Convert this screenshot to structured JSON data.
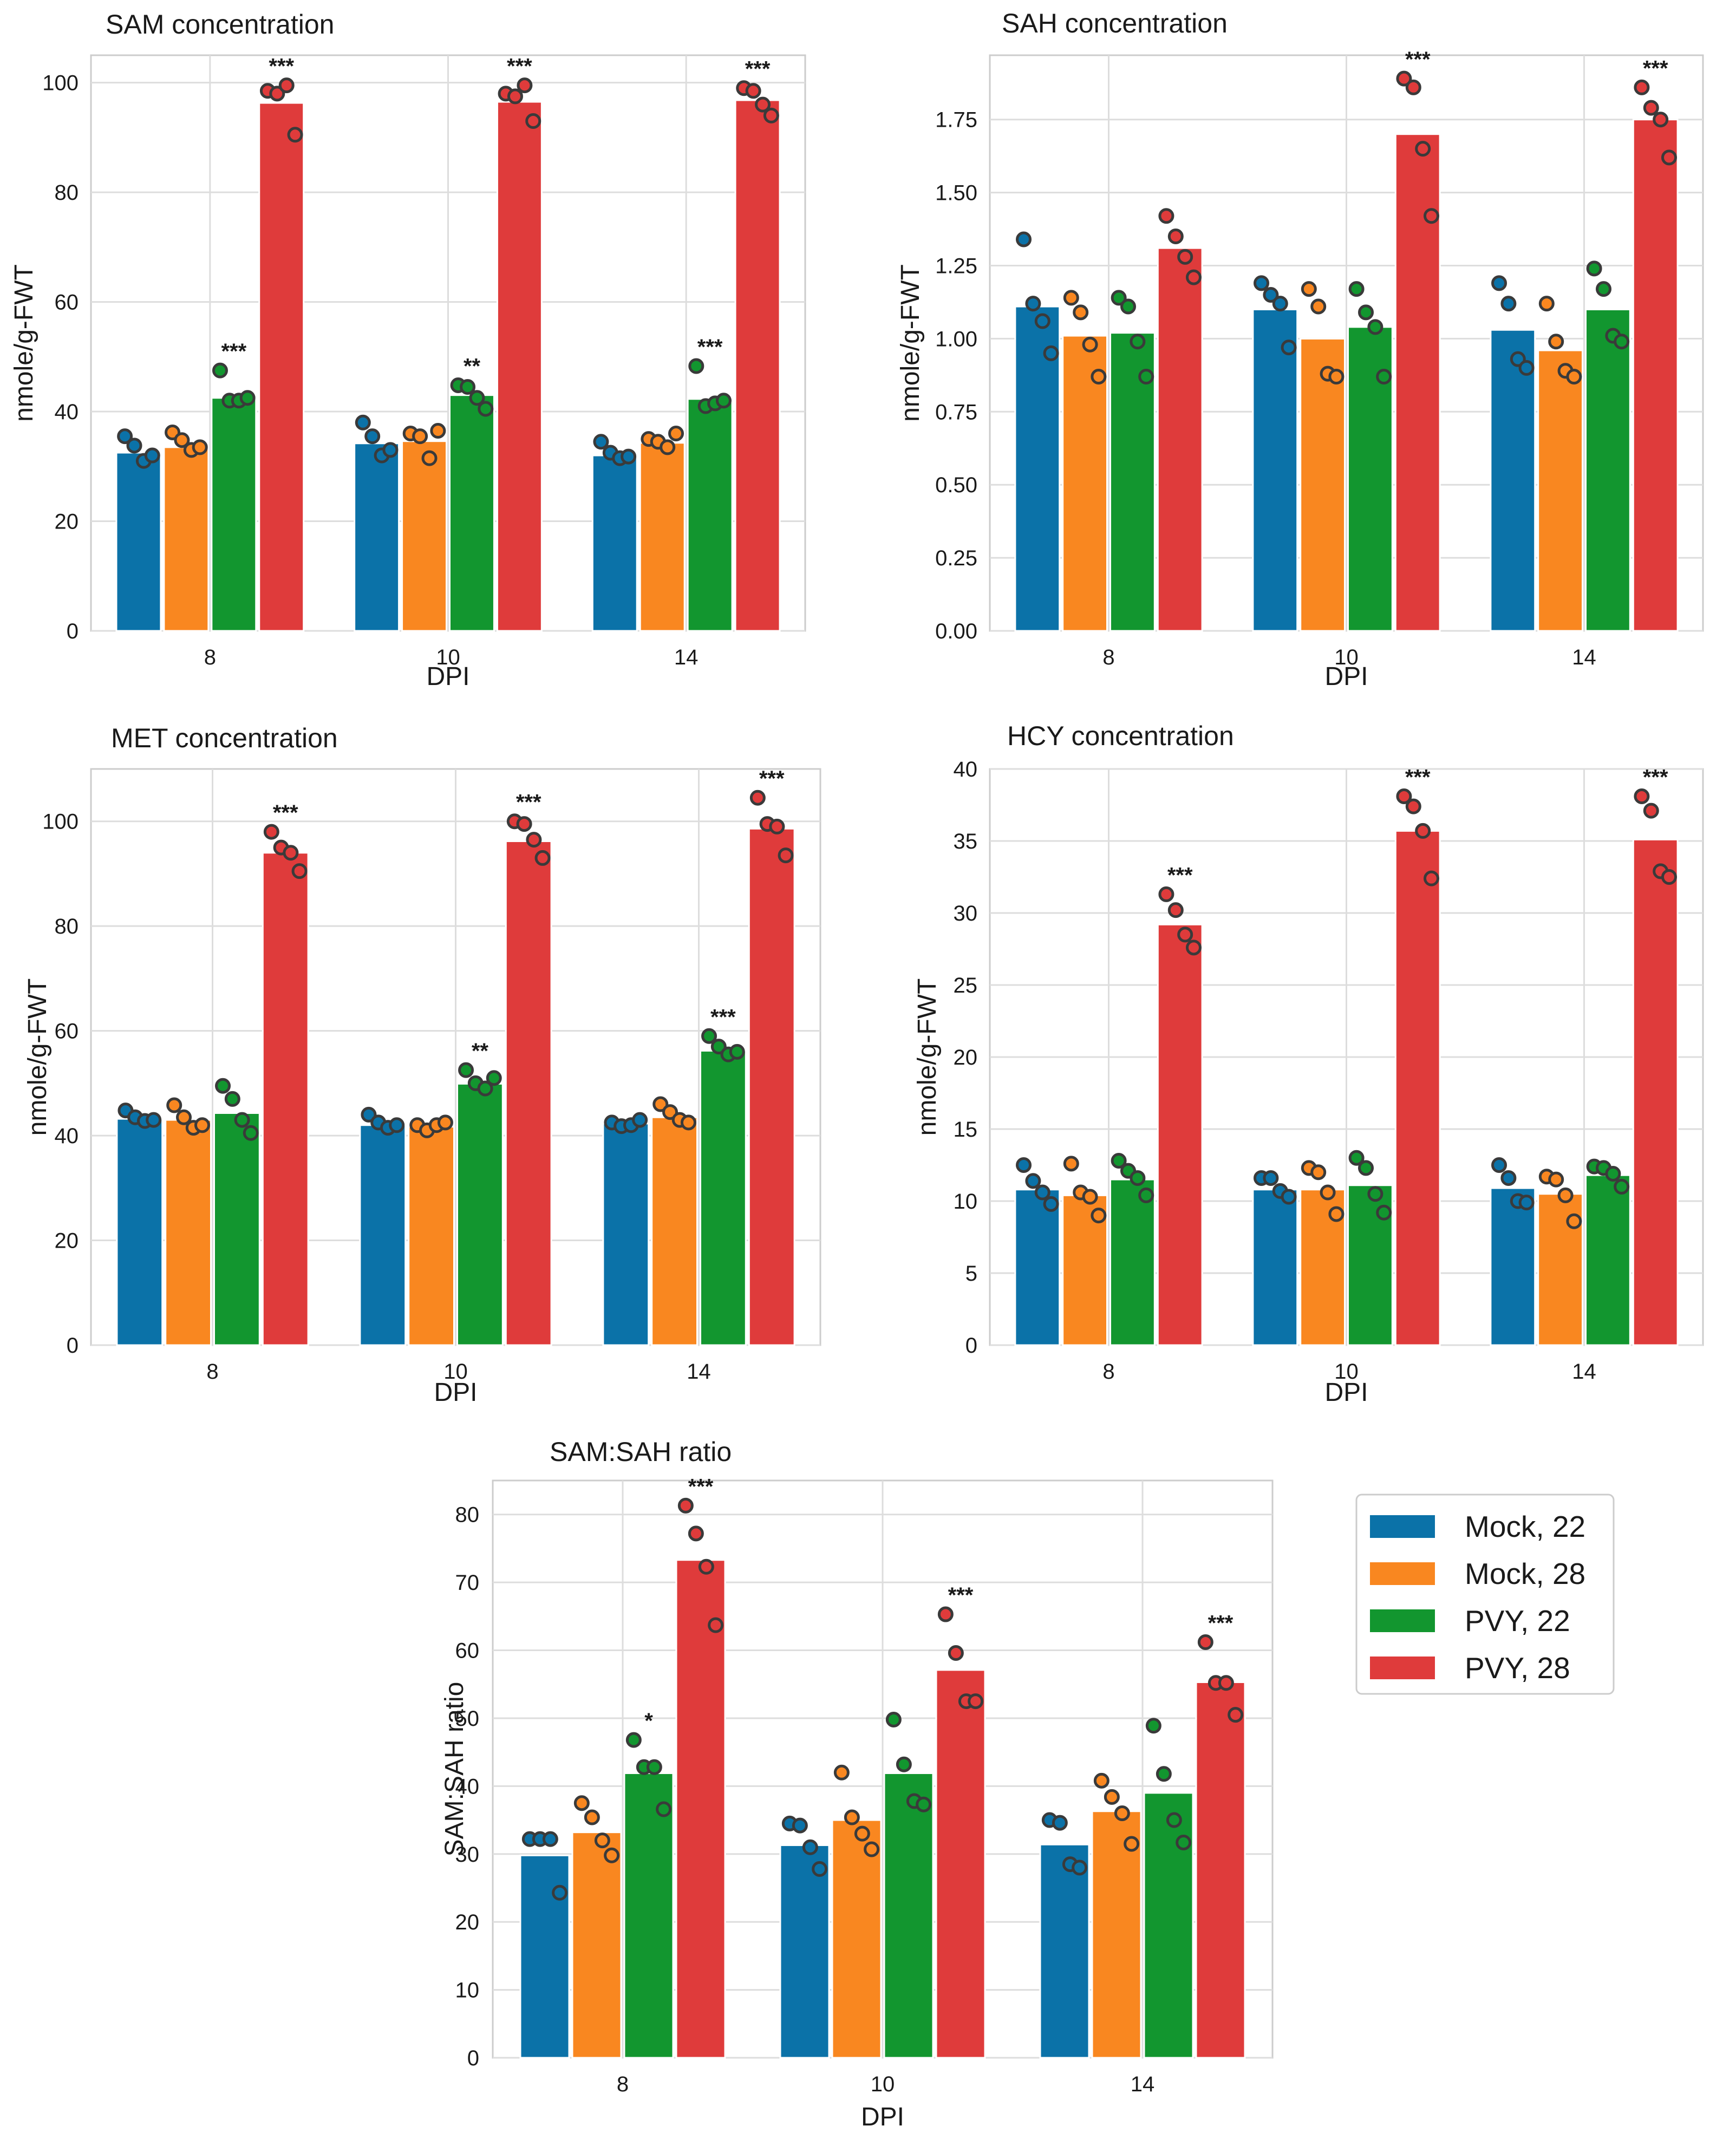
{
  "colors": {
    "Mock, 22": "#0b72a8",
    "Mock, 28": "#f98720",
    "PVY, 22": "#12962f",
    "PVY, 28": "#df3b3b",
    "grid": "#dddddd",
    "frame": "#cccccc",
    "point_edge": "#3a3a3a"
  },
  "legend": {
    "items": [
      "Mock, 22",
      "Mock, 28",
      "PVY, 22",
      "PVY, 28"
    ]
  },
  "chart_data": [
    {
      "type": "bar",
      "title": "SAM concentration",
      "xlabel": "DPI",
      "ylabel": "nmole/g-FWT",
      "categories": [
        "8",
        "10",
        "14"
      ],
      "ylim": [
        0,
        105
      ],
      "yticks": [
        0,
        20,
        40,
        60,
        80,
        100
      ],
      "tick_labels": [
        "0",
        "20",
        "40",
        "60",
        "80",
        "100"
      ],
      "series": [
        {
          "name": "Mock, 22",
          "values": [
            32.5,
            34.2,
            32.0
          ],
          "points": [
            [
              35.5,
              33.8,
              31.0,
              32.0
            ],
            [
              38.0,
              35.5,
              32.0,
              33.0
            ],
            [
              34.5,
              32.5,
              31.5,
              31.8
            ]
          ],
          "sig": [
            "",
            "",
            ""
          ]
        },
        {
          "name": "Mock, 28",
          "values": [
            33.5,
            34.6,
            34.3
          ],
          "points": [
            [
              36.2,
              34.8,
              33.0,
              33.5
            ],
            [
              36.0,
              35.5,
              31.5,
              36.5
            ],
            [
              35.0,
              34.5,
              33.5,
              36.0
            ]
          ],
          "sig": [
            "",
            "",
            ""
          ]
        },
        {
          "name": "PVY, 22",
          "values": [
            42.5,
            43.0,
            42.3
          ],
          "points": [
            [
              47.5,
              42.0,
              42.0,
              42.5
            ],
            [
              44.8,
              44.5,
              42.5,
              40.5
            ],
            [
              48.3,
              41.0,
              41.5,
              42.0
            ]
          ],
          "sig": [
            "***",
            "**",
            "***"
          ]
        },
        {
          "name": "PVY, 28",
          "values": [
            96.3,
            96.5,
            96.8
          ],
          "points": [
            [
              98.5,
              98.0,
              99.5,
              90.5
            ],
            [
              98.0,
              97.5,
              99.5,
              93.0
            ],
            [
              99.0,
              98.5,
              96.0,
              94.0
            ]
          ],
          "sig": [
            "***",
            "***",
            "***"
          ]
        }
      ]
    },
    {
      "type": "bar",
      "title": "SAH concentration",
      "xlabel": "DPI",
      "ylabel": "nmole/g-FWT",
      "categories": [
        "8",
        "10",
        "14"
      ],
      "ylim": [
        0,
        1.97
      ],
      "yticks": [
        0,
        0.25,
        0.5,
        0.75,
        1.0,
        1.25,
        1.5,
        1.75
      ],
      "tick_labels": [
        "0.00",
        "0.25",
        "0.50",
        "0.75",
        "1.00",
        "1.25",
        "1.50",
        "1.75"
      ],
      "series": [
        {
          "name": "Mock, 22",
          "values": [
            1.11,
            1.1,
            1.03
          ],
          "points": [
            [
              1.34,
              1.12,
              1.06,
              0.95
            ],
            [
              1.19,
              1.15,
              1.12,
              0.97
            ],
            [
              1.19,
              1.12,
              0.93,
              0.9
            ]
          ],
          "sig": [
            "",
            "",
            ""
          ]
        },
        {
          "name": "Mock, 28",
          "values": [
            1.01,
            1.0,
            0.96
          ],
          "points": [
            [
              1.14,
              1.09,
              0.98,
              0.87
            ],
            [
              1.17,
              1.11,
              0.88,
              0.87
            ],
            [
              1.12,
              0.99,
              0.89,
              0.87
            ]
          ],
          "sig": [
            "",
            "",
            ""
          ]
        },
        {
          "name": "PVY, 22",
          "values": [
            1.02,
            1.04,
            1.1
          ],
          "points": [
            [
              1.14,
              1.11,
              0.99,
              0.87
            ],
            [
              1.17,
              1.09,
              1.04,
              0.87
            ],
            [
              1.24,
              1.17,
              1.01,
              0.99
            ]
          ],
          "sig": [
            "",
            "",
            ""
          ]
        },
        {
          "name": "PVY, 28",
          "values": [
            1.31,
            1.7,
            1.75
          ],
          "points": [
            [
              1.42,
              1.35,
              1.28,
              1.21
            ],
            [
              1.89,
              1.86,
              1.65,
              1.42
            ],
            [
              1.86,
              1.79,
              1.75,
              1.62
            ]
          ],
          "sig": [
            "",
            "***",
            "***"
          ]
        }
      ]
    },
    {
      "type": "bar",
      "title": "MET concentration",
      "xlabel": "DPI",
      "ylabel": "nmole/g-FWT",
      "categories": [
        "8",
        "10",
        "14"
      ],
      "ylim": [
        0,
        110
      ],
      "yticks": [
        0,
        20,
        40,
        60,
        80,
        100
      ],
      "tick_labels": [
        "0",
        "20",
        "40",
        "60",
        "80",
        "100"
      ],
      "series": [
        {
          "name": "Mock, 22",
          "values": [
            43.2,
            42.0,
            42.3
          ],
          "points": [
            [
              44.8,
              43.5,
              42.8,
              43.0
            ],
            [
              44.0,
              42.5,
              41.5,
              42.0
            ],
            [
              42.5,
              41.8,
              42.0,
              43.0
            ]
          ],
          "sig": [
            "",
            "",
            ""
          ]
        },
        {
          "name": "Mock, 28",
          "values": [
            43.0,
            41.7,
            43.5
          ],
          "points": [
            [
              45.8,
              43.5,
              41.5,
              42.0
            ],
            [
              42.0,
              41.0,
              42.0,
              42.5
            ],
            [
              46.0,
              44.5,
              43.0,
              42.5
            ]
          ],
          "sig": [
            "",
            "",
            ""
          ]
        },
        {
          "name": "PVY, 22",
          "values": [
            44.3,
            49.9,
            56.2
          ],
          "points": [
            [
              49.5,
              47.0,
              43.0,
              40.5
            ],
            [
              52.5,
              50.0,
              49.0,
              51.0
            ],
            [
              59.0,
              57.0,
              55.5,
              56.0
            ]
          ],
          "sig": [
            "",
            "**",
            "***"
          ]
        },
        {
          "name": "PVY, 28",
          "values": [
            94.0,
            96.2,
            98.6
          ],
          "points": [
            [
              98.0,
              95.0,
              94.0,
              90.5
            ],
            [
              100.0,
              99.5,
              96.5,
              93.0
            ],
            [
              104.5,
              99.5,
              99.0,
              93.5
            ]
          ],
          "sig": [
            "***",
            "***",
            "***"
          ]
        }
      ]
    },
    {
      "type": "bar",
      "title": "HCY concentration",
      "xlabel": "DPI",
      "ylabel": "nmole/g-FWT",
      "categories": [
        "8",
        "10",
        "14"
      ],
      "ylim": [
        0,
        40
      ],
      "yticks": [
        0,
        5,
        10,
        15,
        20,
        25,
        30,
        35,
        40
      ],
      "tick_labels": [
        "0",
        "5",
        "10",
        "15",
        "20",
        "25",
        "30",
        "35",
        "40"
      ],
      "series": [
        {
          "name": "Mock, 22",
          "values": [
            10.8,
            10.8,
            10.9
          ],
          "points": [
            [
              12.5,
              11.4,
              10.6,
              9.8
            ],
            [
              11.6,
              11.6,
              10.7,
              10.3
            ],
            [
              12.5,
              11.6,
              10.0,
              9.9
            ]
          ],
          "sig": [
            "",
            "",
            ""
          ]
        },
        {
          "name": "Mock, 28",
          "values": [
            10.4,
            10.8,
            10.5
          ],
          "points": [
            [
              12.6,
              10.6,
              10.3,
              9.0
            ],
            [
              12.3,
              12.0,
              10.6,
              9.1
            ],
            [
              11.7,
              11.5,
              10.4,
              8.6
            ]
          ],
          "sig": [
            "",
            "",
            ""
          ]
        },
        {
          "name": "PVY, 22",
          "values": [
            11.5,
            11.1,
            11.8
          ],
          "points": [
            [
              12.8,
              12.1,
              11.6,
              10.4
            ],
            [
              13.0,
              12.3,
              10.5,
              9.2
            ],
            [
              12.4,
              12.3,
              11.9,
              11.0
            ]
          ],
          "sig": [
            "",
            "",
            ""
          ]
        },
        {
          "name": "PVY, 28",
          "values": [
            29.2,
            35.7,
            35.1
          ],
          "points": [
            [
              31.3,
              30.2,
              28.5,
              27.6
            ],
            [
              38.1,
              37.4,
              35.7,
              32.4
            ],
            [
              38.1,
              37.1,
              32.9,
              32.5
            ]
          ],
          "sig": [
            "***",
            "***",
            "***"
          ]
        }
      ]
    },
    {
      "type": "bar",
      "title": "SAM:SAH ratio",
      "xlabel": "DPI",
      "ylabel": "SAM:SAH ratio",
      "categories": [
        "8",
        "10",
        "14"
      ],
      "ylim": [
        0,
        85
      ],
      "yticks": [
        0,
        10,
        20,
        30,
        40,
        50,
        60,
        70,
        80
      ],
      "tick_labels": [
        "0",
        "10",
        "20",
        "30",
        "40",
        "50",
        "60",
        "70",
        "80"
      ],
      "series": [
        {
          "name": "Mock, 22",
          "values": [
            29.8,
            31.3,
            31.4
          ],
          "points": [
            [
              32.2,
              32.2,
              32.2,
              24.3
            ],
            [
              34.5,
              34.2,
              31.0,
              27.8
            ],
            [
              35.0,
              34.6,
              28.5,
              28.0
            ]
          ],
          "sig": [
            "",
            "",
            ""
          ]
        },
        {
          "name": "Mock, 28",
          "values": [
            33.2,
            35.0,
            36.3
          ],
          "points": [
            [
              37.5,
              35.4,
              32.0,
              29.8
            ],
            [
              42.0,
              35.4,
              33.0,
              30.7
            ],
            [
              40.8,
              38.4,
              36.0,
              31.5
            ]
          ],
          "sig": [
            "",
            "",
            ""
          ]
        },
        {
          "name": "PVY, 22",
          "values": [
            41.9,
            41.9,
            39.0
          ],
          "points": [
            [
              46.8,
              42.8,
              42.8,
              36.6
            ],
            [
              49.8,
              43.2,
              37.8,
              37.3
            ],
            [
              48.9,
              41.8,
              35.0,
              31.7
            ]
          ],
          "sig": [
            "*",
            "",
            ""
          ]
        },
        {
          "name": "PVY, 28",
          "values": [
            73.3,
            57.1,
            55.3
          ],
          "points": [
            [
              81.3,
              77.2,
              72.3,
              63.7
            ],
            [
              65.3,
              59.6,
              52.5,
              52.5
            ],
            [
              61.2,
              55.2,
              55.2,
              50.5
            ]
          ],
          "sig": [
            "***",
            "***",
            "***"
          ]
        }
      ]
    }
  ]
}
